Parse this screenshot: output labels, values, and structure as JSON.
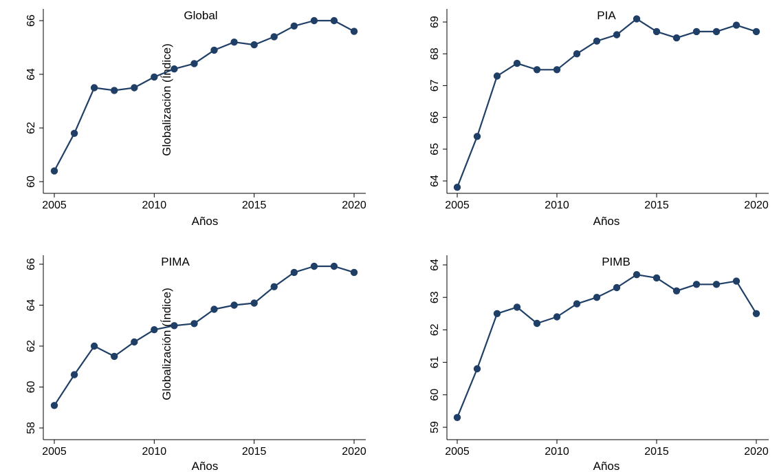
{
  "chart_data": [
    {
      "type": "line",
      "title": "Global",
      "xlabel": "Años",
      "ylabel": "Globalización (Índice)",
      "x": [
        2005,
        2006,
        2007,
        2008,
        2009,
        2010,
        2011,
        2012,
        2013,
        2014,
        2015,
        2016,
        2017,
        2018,
        2019,
        2020
      ],
      "values": [
        60.4,
        61.8,
        63.5,
        63.4,
        63.5,
        63.9,
        64.2,
        64.4,
        64.9,
        65.2,
        65.1,
        65.4,
        65.8,
        66.0,
        66.0,
        65.6
      ],
      "xticks": [
        2005,
        2010,
        2015,
        2020
      ],
      "yticks": [
        60,
        62,
        64,
        66
      ],
      "xlim": [
        2005,
        2020
      ],
      "ylim": [
        60,
        66
      ],
      "grid": false,
      "color": "#1f3f66"
    },
    {
      "type": "line",
      "title": "PIA",
      "xlabel": "Años",
      "ylabel": "",
      "x": [
        2005,
        2006,
        2007,
        2008,
        2009,
        2010,
        2011,
        2012,
        2013,
        2014,
        2015,
        2016,
        2017,
        2018,
        2019,
        2020
      ],
      "values": [
        63.8,
        65.4,
        67.3,
        67.7,
        67.5,
        67.5,
        68.0,
        68.4,
        68.6,
        69.1,
        68.7,
        68.5,
        68.7,
        68.7,
        68.9,
        68.7
      ],
      "xticks": [
        2005,
        2010,
        2015,
        2020
      ],
      "yticks": [
        64,
        65,
        66,
        67,
        68,
        69
      ],
      "xlim": [
        2005,
        2020
      ],
      "ylim": [
        64,
        69
      ],
      "grid": false,
      "color": "#1f3f66"
    },
    {
      "type": "line",
      "title": "PIMA",
      "xlabel": "Años",
      "ylabel": "Globalización (Índice)",
      "x": [
        2005,
        2006,
        2007,
        2008,
        2009,
        2010,
        2011,
        2012,
        2013,
        2014,
        2015,
        2016,
        2017,
        2018,
        2019,
        2020
      ],
      "values": [
        59.1,
        60.6,
        62.0,
        61.5,
        62.2,
        62.8,
        63.0,
        63.1,
        63.8,
        64.0,
        64.1,
        64.9,
        65.6,
        65.9,
        65.9,
        65.6
      ],
      "xticks": [
        2005,
        2010,
        2015,
        2020
      ],
      "yticks": [
        58,
        60,
        62,
        64,
        66
      ],
      "xlim": [
        2005,
        2020
      ],
      "ylim": [
        58,
        66
      ],
      "grid": false,
      "color": "#1f3f66"
    },
    {
      "type": "line",
      "title": "PIMB",
      "xlabel": "Años",
      "ylabel": "",
      "x": [
        2005,
        2006,
        2007,
        2008,
        2009,
        2010,
        2011,
        2012,
        2013,
        2014,
        2015,
        2016,
        2017,
        2018,
        2019,
        2020
      ],
      "values": [
        59.3,
        60.8,
        62.5,
        62.7,
        62.2,
        62.4,
        62.8,
        63.0,
        63.3,
        63.7,
        63.6,
        63.2,
        63.4,
        63.4,
        63.5,
        62.5
      ],
      "xticks": [
        2005,
        2010,
        2015,
        2020
      ],
      "yticks": [
        59,
        60,
        61,
        62,
        63,
        64
      ],
      "xlim": [
        2005,
        2020
      ],
      "ylim": [
        59,
        64
      ],
      "grid": false,
      "color": "#1f3f66"
    }
  ]
}
